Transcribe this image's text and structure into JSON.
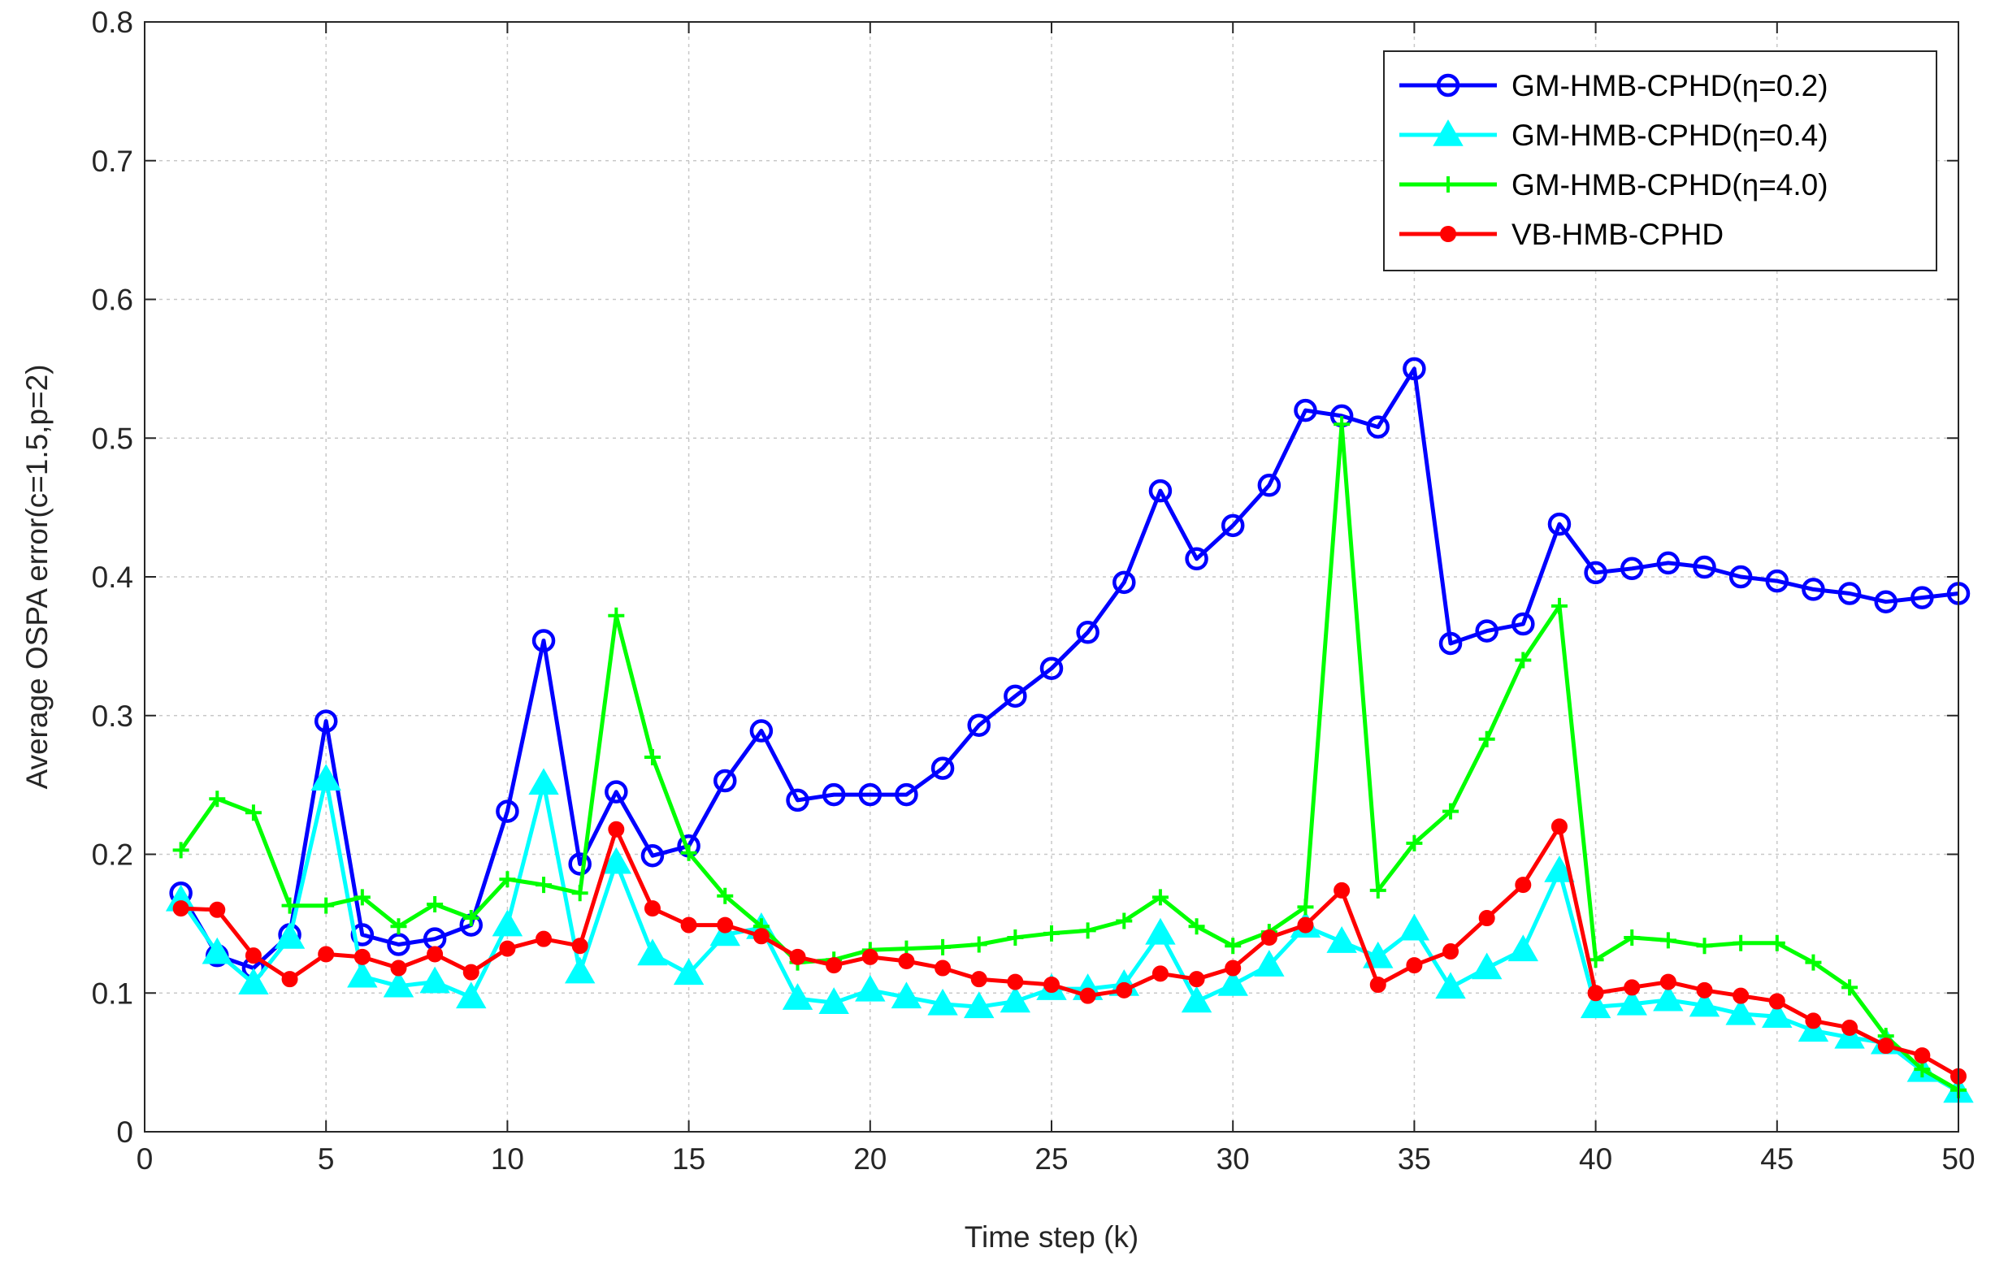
{
  "chart_data": {
    "type": "line",
    "title": "",
    "xlabel": "Time step (k)",
    "ylabel": "Average OSPA error(c=1.5,p=2)",
    "xlim": [
      0,
      50
    ],
    "ylim": [
      0,
      0.8
    ],
    "xticks": [
      0,
      5,
      10,
      15,
      20,
      25,
      30,
      35,
      40,
      45,
      50
    ],
    "yticks": [
      0,
      0.1,
      0.2,
      0.3,
      0.4,
      0.5,
      0.6,
      0.7,
      0.8
    ],
    "xtick_labels": [
      "0",
      "5",
      "10",
      "15",
      "20",
      "25",
      "30",
      "35",
      "40",
      "45",
      "50"
    ],
    "ytick_labels": [
      "0",
      "0.1",
      "0.2",
      "0.3",
      "0.4",
      "0.5",
      "0.6",
      "0.7",
      "0.8"
    ],
    "grid": true,
    "legend_position": "top-right",
    "x": [
      1,
      2,
      3,
      4,
      5,
      6,
      7,
      8,
      9,
      10,
      11,
      12,
      13,
      14,
      15,
      16,
      17,
      18,
      19,
      20,
      21,
      22,
      23,
      24,
      25,
      26,
      27,
      28,
      29,
      30,
      31,
      32,
      33,
      34,
      35,
      36,
      37,
      38,
      39,
      40,
      41,
      42,
      43,
      44,
      45,
      46,
      47,
      48,
      49,
      50
    ],
    "series": [
      {
        "name": "GM-HMB-CPHD(η=0.2)",
        "color": "#0000ff",
        "marker": "circle",
        "values": [
          0.172,
          0.127,
          0.118,
          0.142,
          0.296,
          0.142,
          0.135,
          0.139,
          0.149,
          0.231,
          0.354,
          0.193,
          0.245,
          0.199,
          0.206,
          0.253,
          0.289,
          0.239,
          0.243,
          0.243,
          0.243,
          0.262,
          0.293,
          0.314,
          0.334,
          0.36,
          0.396,
          0.462,
          0.413,
          0.437,
          0.466,
          0.52,
          0.516,
          0.508,
          0.55,
          0.352,
          0.361,
          0.366,
          0.438,
          0.403,
          0.406,
          0.41,
          0.407,
          0.4,
          0.397,
          0.391,
          0.388,
          0.382,
          0.385,
          0.388
        ]
      },
      {
        "name": "GM-HMB-CPHD(η=0.4)",
        "color": "#00ffff",
        "marker": "triangle",
        "values": [
          0.167,
          0.129,
          0.107,
          0.14,
          0.254,
          0.112,
          0.105,
          0.108,
          0.097,
          0.149,
          0.251,
          0.115,
          0.194,
          0.128,
          0.114,
          0.142,
          0.147,
          0.096,
          0.093,
          0.102,
          0.097,
          0.092,
          0.09,
          0.094,
          0.103,
          0.103,
          0.106,
          0.143,
          0.094,
          0.106,
          0.12,
          0.148,
          0.137,
          0.126,
          0.146,
          0.104,
          0.118,
          0.131,
          0.188,
          0.09,
          0.092,
          0.095,
          0.091,
          0.085,
          0.083,
          0.073,
          0.068,
          0.064,
          0.044,
          0.029
        ]
      },
      {
        "name": "GM-HMB-CPHD(η=4.0)",
        "color": "#00ff00",
        "marker": "plus",
        "values": [
          0.203,
          0.24,
          0.23,
          0.163,
          0.163,
          0.169,
          0.148,
          0.164,
          0.154,
          0.182,
          0.178,
          0.172,
          0.372,
          0.27,
          0.201,
          0.17,
          0.148,
          0.122,
          0.124,
          0.131,
          0.132,
          0.133,
          0.135,
          0.14,
          0.143,
          0.145,
          0.152,
          0.169,
          0.148,
          0.134,
          0.144,
          0.162,
          0.51,
          0.174,
          0.208,
          0.231,
          0.283,
          0.34,
          0.379,
          0.124,
          0.14,
          0.138,
          0.134,
          0.136,
          0.136,
          0.122,
          0.104,
          0.069,
          0.045,
          0.03
        ]
      },
      {
        "name": "VB-HMB-CPHD",
        "color": "#ff0000",
        "marker": "dot",
        "values": [
          0.161,
          0.16,
          0.127,
          0.11,
          0.128,
          0.126,
          0.118,
          0.128,
          0.115,
          0.132,
          0.139,
          0.134,
          0.218,
          0.161,
          0.149,
          0.149,
          0.141,
          0.126,
          0.12,
          0.126,
          0.123,
          0.118,
          0.11,
          0.108,
          0.106,
          0.098,
          0.102,
          0.114,
          0.11,
          0.118,
          0.14,
          0.149,
          0.174,
          0.106,
          0.12,
          0.13,
          0.154,
          0.178,
          0.22,
          0.1,
          0.104,
          0.108,
          0.102,
          0.098,
          0.094,
          0.08,
          0.075,
          0.062,
          0.055,
          0.04
        ]
      }
    ]
  }
}
